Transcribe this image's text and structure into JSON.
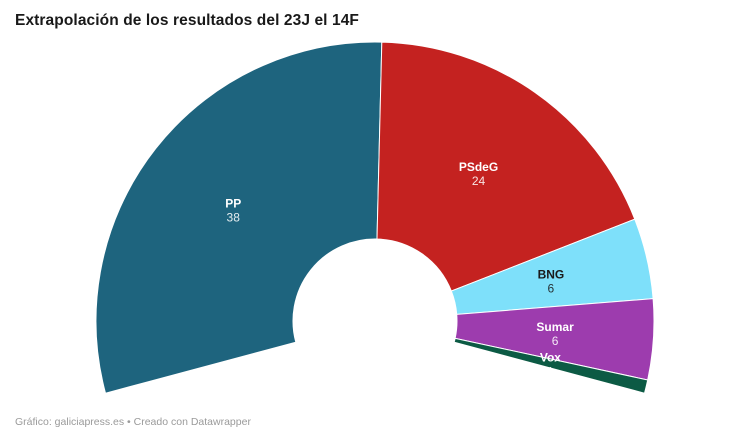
{
  "header": {
    "title": "Extrapolación de los resultados del 23J el 14F"
  },
  "footer": {
    "credit": "Gráfico: galiciapress.es • Creado con Datawrapper"
  },
  "chart_data": {
    "type": "pie",
    "subtype": "half-donut-seat-arc",
    "title": "Extrapolación de los resultados del 23J el 14F",
    "total_seats": 75,
    "legend_position": "labels-inside-segments",
    "grid": false,
    "arc": {
      "start_angle_deg": 195,
      "end_angle_deg": -15
    },
    "separator_color": "#ffffff",
    "segments": [
      {
        "name": "PP",
        "seats": 38,
        "color": "#1e647e",
        "label_color": "#ffffff"
      },
      {
        "name": "PSdeG",
        "seats": 24,
        "color": "#c42220",
        "label_color": "#ffffff"
      },
      {
        "name": "BNG",
        "seats": 6,
        "color": "#7ee0fa",
        "label_color": "#1a1a1a"
      },
      {
        "name": "Sumar",
        "seats": 6,
        "color": "#9d3cae",
        "label_color": "#ffffff"
      },
      {
        "name": "Vox",
        "seats": 1,
        "color": "#0c5a44",
        "label_color": "#ffffff"
      }
    ]
  }
}
